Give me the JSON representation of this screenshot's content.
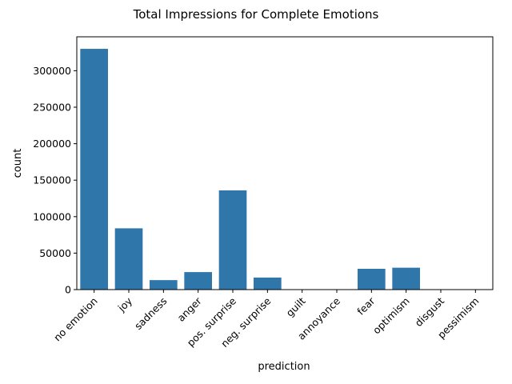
{
  "chart_data": {
    "type": "bar",
    "title": "Total Impressions for Complete Emotions",
    "xlabel": "prediction",
    "ylabel": "count",
    "categories": [
      "no emotion",
      "joy",
      "sadness",
      "anger",
      "pos. surprise",
      "neg. surprise",
      "guilt",
      "annoyance",
      "fear",
      "optimism",
      "disgust",
      "pessimism"
    ],
    "values": [
      330000,
      84000,
      13000,
      24000,
      136000,
      16500,
      0,
      0,
      28500,
      30000,
      0,
      0
    ],
    "ylim": [
      0,
      346500
    ],
    "yticks": [
      0,
      50000,
      100000,
      150000,
      200000,
      250000,
      300000
    ],
    "xtick_rotation": 45,
    "grid": false,
    "legend": "none",
    "bar_color": "#2f76ab"
  }
}
